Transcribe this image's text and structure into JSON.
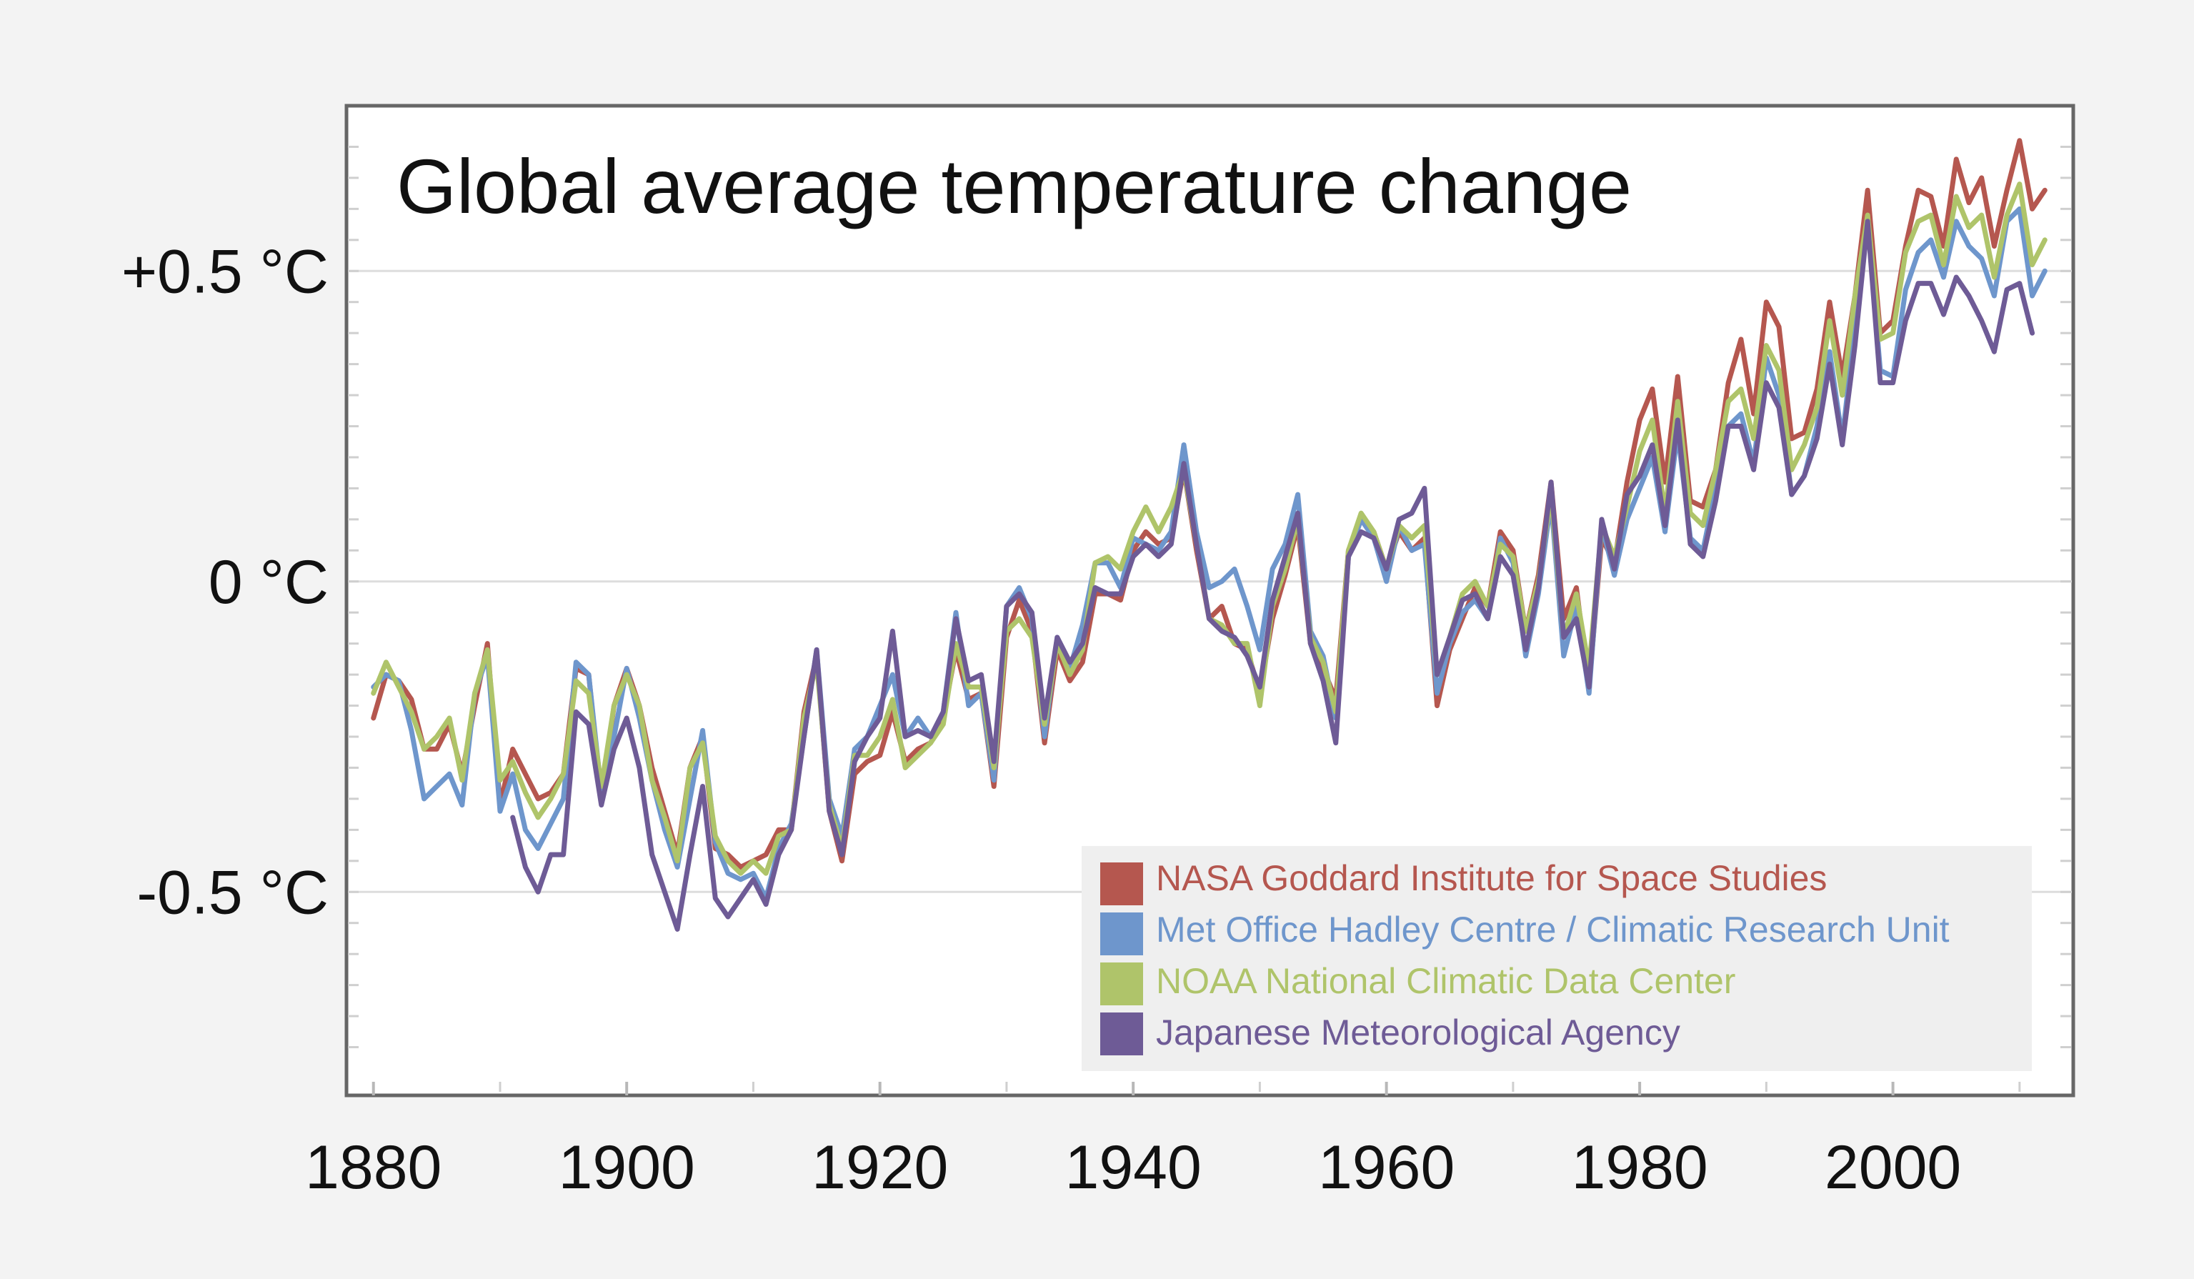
{
  "chart_data": {
    "type": "line",
    "title": "Global average temperature change",
    "xlabel": "",
    "ylabel": "",
    "xlim": [
      1879,
      2013
    ],
    "ylim": [
      -0.8,
      0.75
    ],
    "grid": true,
    "legend_position": "bottom-right",
    "y_ticks": [
      {
        "value": 0.5,
        "label": "+0.5 °C"
      },
      {
        "value": 0,
        "label": "0 °C"
      },
      {
        "value": -0.5,
        "label": "-0.5 °C"
      }
    ],
    "x_ticks": [
      {
        "value": 1880,
        "label": "1880"
      },
      {
        "value": 1900,
        "label": "1900"
      },
      {
        "value": 1920,
        "label": "1920"
      },
      {
        "value": 1940,
        "label": "1940"
      },
      {
        "value": 1960,
        "label": "1960"
      },
      {
        "value": 1980,
        "label": "1980"
      },
      {
        "value": 2000,
        "label": "2000"
      }
    ],
    "series": [
      {
        "name": "NASA Goddard Institute for Space Studies",
        "color": "#b5574f",
        "start_year": 1880,
        "values": [
          -0.22,
          -0.15,
          -0.16,
          -0.19,
          -0.27,
          -0.27,
          -0.23,
          -0.31,
          -0.2,
          -0.1,
          -0.36,
          -0.27,
          -0.31,
          -0.35,
          -0.34,
          -0.31,
          -0.14,
          -0.15,
          -0.35,
          -0.2,
          -0.14,
          -0.2,
          -0.3,
          -0.37,
          -0.44,
          -0.3,
          -0.25,
          -0.43,
          -0.44,
          -0.46,
          -0.45,
          -0.44,
          -0.4,
          -0.4,
          -0.21,
          -0.12,
          -0.37,
          -0.45,
          -0.31,
          -0.29,
          -0.28,
          -0.21,
          -0.29,
          -0.27,
          -0.26,
          -0.22,
          -0.11,
          -0.19,
          -0.18,
          -0.33,
          -0.09,
          -0.03,
          -0.08,
          -0.26,
          -0.11,
          -0.16,
          -0.13,
          -0.02,
          -0.02,
          -0.03,
          0.05,
          0.08,
          0.06,
          0.07,
          0.18,
          0.05,
          -0.06,
          -0.04,
          -0.1,
          -0.11,
          -0.18,
          -0.06,
          0.01,
          0.09,
          -0.1,
          -0.14,
          -0.19,
          0.05,
          0.1,
          0.08,
          0.02,
          0.08,
          0.05,
          0.07,
          -0.2,
          -0.11,
          -0.06,
          -0.01,
          -0.04,
          0.08,
          0.05,
          -0.08,
          0.01,
          0.16,
          -0.06,
          -0.01,
          -0.17,
          0.07,
          0.03,
          0.16,
          0.26,
          0.31,
          0.16,
          0.33,
          0.13,
          0.12,
          0.18,
          0.32,
          0.39,
          0.27,
          0.45,
          0.41,
          0.23,
          0.24,
          0.31,
          0.45,
          0.33,
          0.46,
          0.63,
          0.4,
          0.42,
          0.54,
          0.63,
          0.62,
          0.54,
          0.68,
          0.61,
          0.65,
          0.54,
          0.63,
          0.71,
          0.6,
          0.63
        ]
      },
      {
        "name": "Met Office Hadley Centre / Climatic Research Unit",
        "color": "#6e96cc",
        "start_year": 1880,
        "values": [
          -0.17,
          -0.15,
          -0.16,
          -0.24,
          -0.35,
          -0.33,
          -0.31,
          -0.36,
          -0.18,
          -0.12,
          -0.37,
          -0.31,
          -0.4,
          -0.43,
          -0.39,
          -0.35,
          -0.13,
          -0.15,
          -0.34,
          -0.25,
          -0.14,
          -0.22,
          -0.32,
          -0.4,
          -0.46,
          -0.35,
          -0.24,
          -0.42,
          -0.47,
          -0.48,
          -0.47,
          -0.51,
          -0.43,
          -0.39,
          -0.25,
          -0.11,
          -0.35,
          -0.41,
          -0.27,
          -0.25,
          -0.2,
          -0.15,
          -0.25,
          -0.22,
          -0.25,
          -0.21,
          -0.05,
          -0.2,
          -0.18,
          -0.32,
          -0.04,
          -0.01,
          -0.06,
          -0.25,
          -0.09,
          -0.14,
          -0.07,
          0.03,
          0.03,
          -0.01,
          0.07,
          0.06,
          0.05,
          0.08,
          0.22,
          0.08,
          -0.01,
          0.0,
          0.02,
          -0.04,
          -0.11,
          0.02,
          0.06,
          0.14,
          -0.08,
          -0.12,
          -0.22,
          0.04,
          0.1,
          0.07,
          0.0,
          0.09,
          0.05,
          0.06,
          -0.18,
          -0.1,
          -0.05,
          -0.03,
          -0.06,
          0.07,
          0.03,
          -0.12,
          -0.02,
          0.13,
          -0.12,
          -0.04,
          -0.18,
          0.09,
          0.01,
          0.1,
          0.15,
          0.2,
          0.08,
          0.24,
          0.07,
          0.05,
          0.15,
          0.25,
          0.27,
          0.19,
          0.36,
          0.3,
          0.14,
          0.17,
          0.25,
          0.37,
          0.23,
          0.41,
          0.58,
          0.34,
          0.33,
          0.47,
          0.53,
          0.55,
          0.49,
          0.58,
          0.54,
          0.52,
          0.46,
          0.58,
          0.6,
          0.46,
          0.5
        ]
      },
      {
        "name": "NOAA National Climatic Data Center",
        "color": "#afc46a",
        "start_year": 1880,
        "values": [
          -0.18,
          -0.13,
          -0.17,
          -0.21,
          -0.27,
          -0.25,
          -0.22,
          -0.32,
          -0.18,
          -0.11,
          -0.32,
          -0.29,
          -0.34,
          -0.38,
          -0.35,
          -0.31,
          -0.16,
          -0.18,
          -0.33,
          -0.2,
          -0.15,
          -0.2,
          -0.32,
          -0.38,
          -0.45,
          -0.3,
          -0.26,
          -0.41,
          -0.45,
          -0.47,
          -0.45,
          -0.47,
          -0.41,
          -0.4,
          -0.22,
          -0.13,
          -0.36,
          -0.43,
          -0.28,
          -0.28,
          -0.25,
          -0.19,
          -0.3,
          -0.28,
          -0.26,
          -0.23,
          -0.1,
          -0.17,
          -0.17,
          -0.3,
          -0.08,
          -0.06,
          -0.09,
          -0.23,
          -0.1,
          -0.15,
          -0.11,
          0.03,
          0.04,
          0.02,
          0.08,
          0.12,
          0.08,
          0.12,
          0.18,
          0.06,
          -0.06,
          -0.07,
          -0.1,
          -0.1,
          -0.2,
          -0.04,
          0.02,
          0.1,
          -0.09,
          -0.13,
          -0.21,
          0.05,
          0.11,
          0.08,
          0.02,
          0.09,
          0.07,
          0.09,
          -0.15,
          -0.09,
          -0.02,
          0.0,
          -0.04,
          0.06,
          0.04,
          -0.08,
          0.0,
          0.14,
          -0.09,
          -0.02,
          -0.14,
          0.09,
          0.04,
          0.12,
          0.21,
          0.26,
          0.11,
          0.29,
          0.11,
          0.09,
          0.18,
          0.29,
          0.31,
          0.23,
          0.38,
          0.34,
          0.18,
          0.22,
          0.28,
          0.42,
          0.3,
          0.46,
          0.59,
          0.39,
          0.4,
          0.53,
          0.58,
          0.59,
          0.51,
          0.62,
          0.57,
          0.59,
          0.49,
          0.59,
          0.64,
          0.51,
          0.55
        ]
      },
      {
        "name": "Japanese Meteorological Agency",
        "color": "#6e5b96",
        "start_year": 1891,
        "values": [
          -0.38,
          -0.46,
          -0.5,
          -0.44,
          -0.44,
          -0.21,
          -0.23,
          -0.36,
          -0.27,
          -0.22,
          -0.3,
          -0.44,
          -0.5,
          -0.56,
          -0.44,
          -0.33,
          -0.51,
          -0.54,
          -0.51,
          -0.48,
          -0.52,
          -0.44,
          -0.4,
          -0.25,
          -0.11,
          -0.37,
          -0.44,
          -0.29,
          -0.25,
          -0.22,
          -0.08,
          -0.25,
          -0.24,
          -0.25,
          -0.21,
          -0.06,
          -0.16,
          -0.15,
          -0.29,
          -0.04,
          -0.02,
          -0.05,
          -0.22,
          -0.09,
          -0.13,
          -0.1,
          -0.01,
          -0.02,
          -0.02,
          0.04,
          0.06,
          0.04,
          0.06,
          0.19,
          0.06,
          -0.06,
          -0.08,
          -0.09,
          -0.12,
          -0.17,
          -0.03,
          0.04,
          0.11,
          -0.1,
          -0.16,
          -0.26,
          0.04,
          0.08,
          0.07,
          0.02,
          0.1,
          0.11,
          0.15,
          -0.15,
          -0.09,
          -0.03,
          -0.02,
          -0.06,
          0.04,
          0.01,
          -0.11,
          -0.01,
          0.16,
          -0.09,
          -0.06,
          -0.17,
          0.1,
          0.02,
          0.14,
          0.17,
          0.22,
          0.09,
          0.26,
          0.06,
          0.04,
          0.13,
          0.25,
          0.25,
          0.18,
          0.32,
          0.28,
          0.14,
          0.17,
          0.23,
          0.35,
          0.22,
          0.38,
          0.58,
          0.32,
          0.32,
          0.42,
          0.48,
          0.48,
          0.43,
          0.49,
          0.46,
          0.42,
          0.37,
          0.47,
          0.48,
          0.4
        ]
      }
    ]
  }
}
